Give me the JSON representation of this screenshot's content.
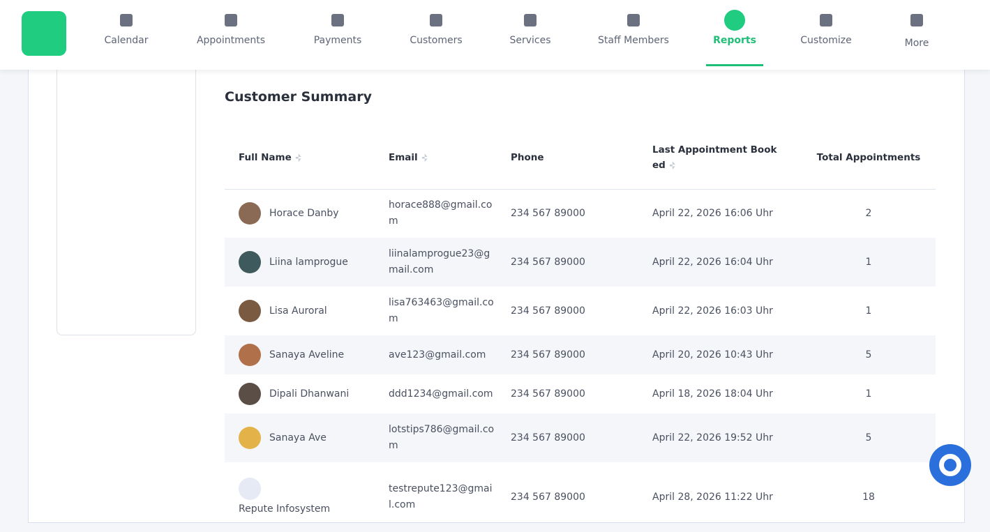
{
  "nav": {
    "items": [
      "Calendar",
      "Appointments",
      "Payments",
      "Customers",
      "Services",
      "Staff Members",
      "Reports",
      "Customize",
      "More"
    ],
    "active": 6
  },
  "section": {
    "title": "Customer Summary"
  },
  "table": {
    "headers": [
      "Full Name",
      "Email",
      "Phone",
      "Last Appointment Booked",
      "Total Appointments"
    ],
    "rows": [
      [
        "Horace Danby",
        "horace888@gmail.com",
        "234 567 89000",
        "April 22, 2026 16:06 Uhr",
        2
      ],
      [
        "Liina lamprogue",
        "liinalamprogue23@gmail.com",
        "234 567 89000",
        "April 22, 2026 16:04 Uhr",
        1
      ],
      [
        "Lisa Auroral",
        "lisa763463@gmail.com",
        "234 567 89000",
        "April 22, 2026 16:03 Uhr",
        1
      ],
      [
        "Sanaya Aveline",
        "ave123@gmail.com",
        "234 567 89000",
        "April 20, 2026 10:43 Uhr",
        5
      ],
      [
        "Dipali Dhanwani",
        "ddd1234@gmail.com",
        "234 567 89000",
        "April 18, 2026 18:04 Uhr",
        1
      ],
      [
        "Sanaya Ave",
        "lotstips786@gmail.com",
        "234 567 89000",
        "April 22, 2026 19:52 Uhr",
        5
      ],
      [
        "Repute Infosystem",
        "testrepute123@gmail.com",
        "234 567 89000",
        "April 28, 2026 11:22 Uhr",
        18
      ]
    ]
  }
}
